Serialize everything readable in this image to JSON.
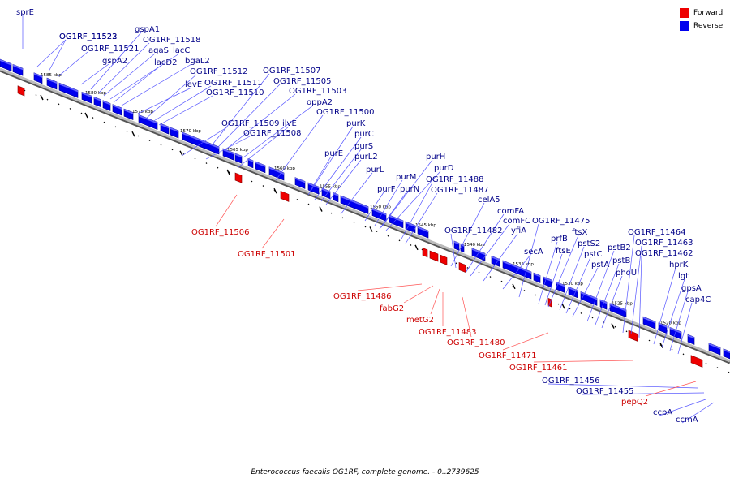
{
  "legend": {
    "forward_label": "Forward",
    "reverse_label": "Reverse",
    "forward_color": "#ee0000",
    "reverse_color": "#0000ee"
  },
  "footer": {
    "caption": "Enterococcus faecalis OG1RF, complete genome. - 0..2739625"
  },
  "colors": {
    "forward_label": "#cc0000",
    "reverse_label": "#000088",
    "backbone": "#999999"
  },
  "ticks": [
    "1585 kbp",
    "1580 kbp",
    "1575 kbp",
    "1570 kbp",
    "1565 kbp",
    "1560 kbp",
    "1555 kbp",
    "1550 kbp",
    "1545 kbp",
    "1540 kbp",
    "1535 kbp",
    "1530 kbp",
    "1525 kbp",
    "1520 kbp"
  ],
  "forward_labels": [
    "OG1RF_11506",
    "OG1RF_11501",
    "OG1RF_11486",
    "fabG2",
    "metG2",
    "OG1RF_11483",
    "OG1RF_11480",
    "OG1RF_11471",
    "OG1RF_11461",
    "pepQ2"
  ],
  "reverse_labels": [
    "sprE",
    "OG1RF_11523",
    "OG1RF_11522",
    "OG1RF_11521",
    "gspA2",
    "gspA1",
    "OG1RF_11518",
    "agaS",
    "lacC",
    "lacD2",
    "bgaL2",
    "levE",
    "OG1RF_11512",
    "OG1RF_11511",
    "OG1RF_11510",
    "OG1RF_11507",
    "OG1RF_11505",
    "OG1RF_11503",
    "oppA2",
    "OG1RF_11509",
    "ilvE",
    "OG1RF_11508",
    "OG1RF_11500",
    "purK",
    "purC",
    "purE",
    "purS",
    "purL2",
    "purL",
    "purH",
    "purD",
    "purM",
    "purF",
    "purN",
    "OG1RF_11488",
    "OG1RF_11487",
    "celA5",
    "comFA",
    "comFC",
    "OG1RF_11482",
    "yfiA",
    "OG1RF_11475",
    "secA",
    "ftsX",
    "prfB",
    "ftsE",
    "pstS2",
    "pstC",
    "pstB2",
    "pstA",
    "pstB",
    "phoU",
    "OG1RF_11464",
    "OG1RF_11463",
    "OG1RF_11462",
    "hprK",
    "lgt",
    "gpsA",
    "cap4C",
    "OG1RF_11456",
    "OG1RF_11455",
    "ccpA",
    "ccmA"
  ]
}
